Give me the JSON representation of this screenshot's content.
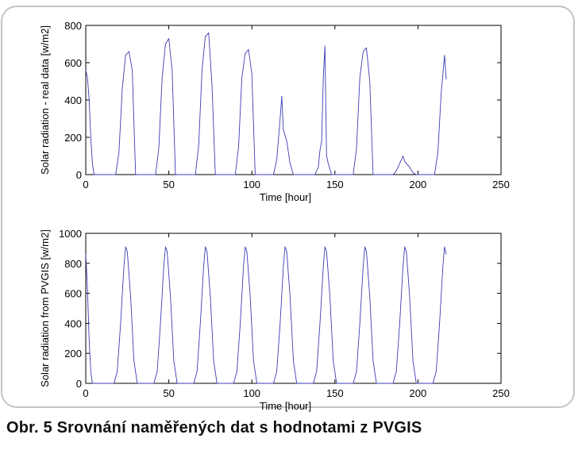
{
  "caption": "Obr. 5 Srovnání naměřených dat s hodnotami z PVGIS",
  "colors": {
    "line": "#3c3cb4",
    "axis": "#000000",
    "frame": "#c4c4c4"
  },
  "chart_data": [
    {
      "type": "line",
      "title": "",
      "xlabel": "Time [hour]",
      "ylabel": "Solar radiation - real data [w/m2]",
      "xlim": [
        0,
        250
      ],
      "ylim": [
        0,
        800
      ],
      "xticks": [
        0,
        50,
        100,
        150,
        200,
        250
      ],
      "yticks": [
        0,
        200,
        400,
        600,
        800
      ],
      "series": [
        {
          "name": "real data",
          "x": [
            0,
            1,
            2,
            3,
            4,
            5,
            6,
            18,
            20,
            22,
            24,
            26,
            28,
            30,
            42,
            44,
            46,
            48,
            50,
            52,
            54,
            66,
            68,
            70,
            72,
            74,
            76,
            78,
            90,
            92,
            94,
            96,
            98,
            100,
            102,
            113,
            115,
            117,
            118,
            119,
            121,
            123,
            125,
            138,
            140,
            141,
            142,
            143,
            144,
            145,
            146,
            148,
            161,
            163,
            165,
            167,
            169,
            171,
            173,
            185,
            187,
            189,
            191,
            192,
            193,
            195,
            197,
            199,
            210,
            212,
            214,
            216,
            217
          ],
          "y": [
            560,
            520,
            410,
            200,
            60,
            0,
            0,
            0,
            120,
            460,
            640,
            660,
            560,
            0,
            0,
            140,
            520,
            700,
            730,
            560,
            0,
            0,
            160,
            560,
            740,
            760,
            480,
            0,
            0,
            150,
            520,
            650,
            670,
            540,
            0,
            0,
            80,
            300,
            420,
            240,
            180,
            60,
            0,
            0,
            40,
            130,
            180,
            520,
            690,
            100,
            60,
            0,
            0,
            140,
            520,
            660,
            680,
            500,
            0,
            0,
            20,
            60,
            100,
            70,
            60,
            40,
            10,
            0,
            0,
            120,
            440,
            640,
            510
          ]
        }
      ]
    },
    {
      "type": "line",
      "title": "",
      "xlabel": "Time [hour]",
      "ylabel": "Solar radiation from PVGIS [w/m2]",
      "xlim": [
        0,
        250
      ],
      "ylim": [
        0,
        1000
      ],
      "xticks": [
        0,
        50,
        100,
        150,
        200,
        250
      ],
      "yticks": [
        0,
        200,
        400,
        600,
        800,
        1000
      ],
      "series": [
        {
          "name": "PVGIS",
          "x": [
            0,
            1,
            2,
            3,
            4,
            5,
            17,
            19,
            21,
            23,
            24,
            25,
            27,
            29,
            31,
            41,
            43,
            45,
            47,
            48,
            49,
            51,
            53,
            55,
            65,
            67,
            69,
            71,
            72,
            73,
            75,
            77,
            79,
            89,
            91,
            93,
            95,
            96,
            97,
            99,
            101,
            103,
            113,
            115,
            117,
            119,
            120,
            121,
            123,
            125,
            127,
            137,
            139,
            141,
            143,
            144,
            145,
            147,
            149,
            151,
            161,
            163,
            165,
            167,
            168,
            169,
            171,
            173,
            175,
            185,
            187,
            189,
            191,
            192,
            193,
            195,
            197,
            199,
            209,
            211,
            213,
            215,
            216,
            217
          ],
          "y": [
            860,
            640,
            300,
            80,
            0,
            0,
            0,
            80,
            400,
            780,
            910,
            880,
            580,
            150,
            0,
            0,
            80,
            400,
            780,
            910,
            880,
            580,
            150,
            0,
            0,
            80,
            400,
            780,
            910,
            880,
            580,
            150,
            0,
            0,
            80,
            400,
            780,
            910,
            880,
            580,
            150,
            0,
            0,
            80,
            400,
            780,
            910,
            880,
            580,
            150,
            0,
            0,
            80,
            400,
            780,
            910,
            880,
            580,
            150,
            0,
            0,
            80,
            400,
            780,
            910,
            880,
            580,
            150,
            0,
            0,
            80,
            400,
            780,
            910,
            880,
            580,
            150,
            0,
            0,
            80,
            400,
            780,
            910,
            860
          ]
        }
      ]
    }
  ]
}
